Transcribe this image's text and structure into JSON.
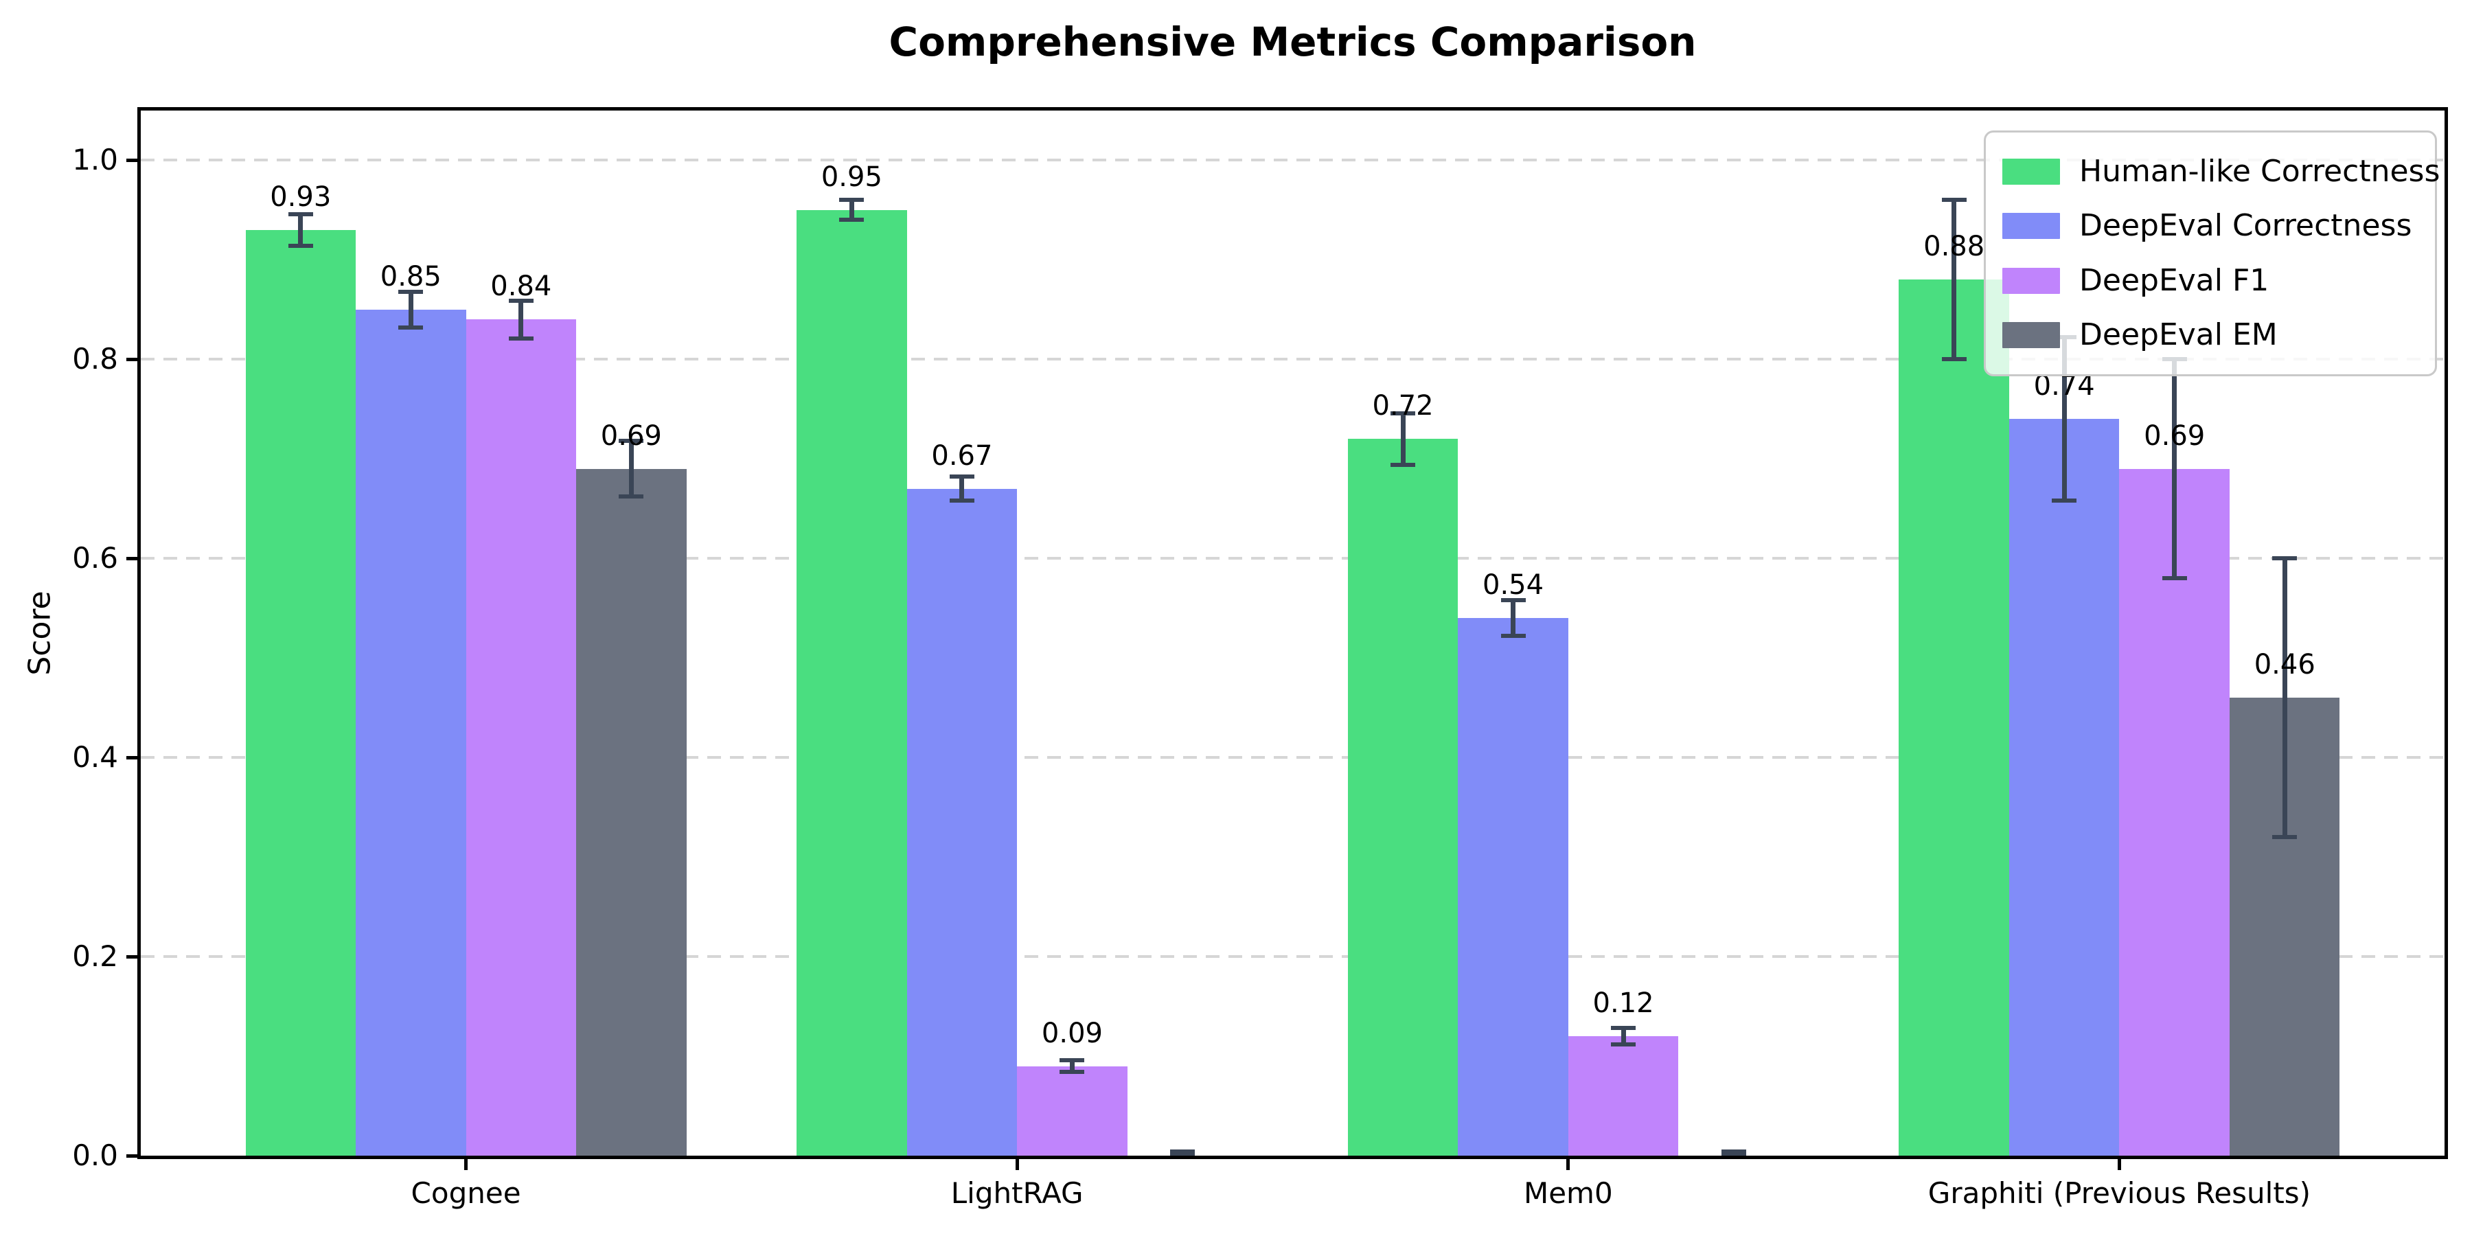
{
  "chart_data": {
    "type": "bar",
    "title": "Comprehensive Metrics Comparison",
    "xlabel": "",
    "ylabel": "Score",
    "categories": [
      "Cognee",
      "LightRAG",
      "Mem0",
      "Graphiti (Previous Results)"
    ],
    "series": [
      {
        "name": "Human-like Correctness",
        "color": "#4ade80",
        "values": [
          0.93,
          0.95,
          0.72,
          0.88
        ],
        "errors": [
          0.016,
          0.01,
          0.026,
          0.08
        ],
        "labels": [
          "0.93",
          "0.95",
          "0.72",
          "0.88"
        ]
      },
      {
        "name": "DeepEval Correctness",
        "color": "#818cf8",
        "values": [
          0.85,
          0.67,
          0.54,
          0.74
        ],
        "errors": [
          0.018,
          0.012,
          0.018,
          0.082
        ],
        "labels": [
          "0.85",
          "0.67",
          "0.54",
          "0.74"
        ]
      },
      {
        "name": "DeepEval F1",
        "color": "#c084fc",
        "values": [
          0.84,
          0.09,
          0.12,
          0.69
        ],
        "errors": [
          0.019,
          0.006,
          0.008,
          0.11
        ],
        "labels": [
          "0.84",
          "0.09",
          "0.12",
          "0.69"
        ]
      },
      {
        "name": "DeepEval EM",
        "color": "#6b7280",
        "values": [
          0.69,
          0.0,
          0.0,
          0.46
        ],
        "errors": [
          0.028,
          0.004,
          0.004,
          0.14
        ],
        "labels": [
          "0.69",
          "",
          "",
          "0.46"
        ]
      }
    ],
    "yticks": [
      {
        "v": 0.0,
        "label": "0.0"
      },
      {
        "v": 0.2,
        "label": "0.2"
      },
      {
        "v": 0.4,
        "label": "0.4"
      },
      {
        "v": 0.6,
        "label": "0.6"
      },
      {
        "v": 0.8,
        "label": "0.8"
      },
      {
        "v": 1.0,
        "label": "1.0"
      }
    ],
    "ylim": [
      0,
      1.05
    ],
    "grid": {
      "axis": "y",
      "style": "dashed",
      "color": "#d6d6d6"
    },
    "legend_position": "upper right",
    "colors": {
      "errorbar": "#3a4556",
      "axis": "#000000",
      "text": "#000000",
      "background": "#ffffff"
    }
  }
}
